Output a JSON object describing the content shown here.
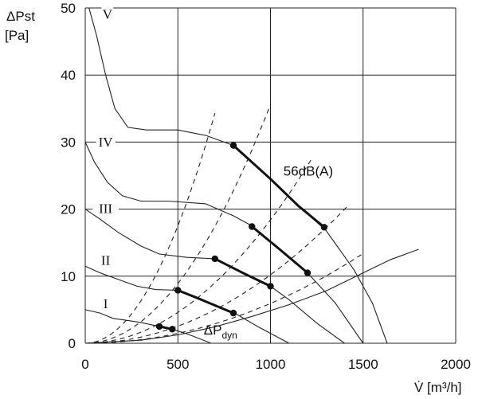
{
  "chart_data": {
    "type": "line",
    "title": "",
    "xlabel": "V̇ [m³/h]",
    "ylabel_line1": "ΔPst",
    "ylabel_line2": "[Pa]",
    "xlim": [
      0,
      2000
    ],
    "ylim": [
      0,
      50
    ],
    "x_ticks": [
      0,
      500,
      1000,
      1500,
      2000
    ],
    "y_ticks": [
      0,
      10,
      20,
      30,
      40,
      50
    ],
    "grid": true,
    "fan_curves": [
      {
        "name": "V",
        "points": [
          [
            20,
            50
          ],
          [
            60,
            46
          ],
          [
            110,
            40
          ],
          [
            160,
            35
          ],
          [
            230,
            32.2
          ],
          [
            330,
            31.8
          ],
          [
            500,
            31.8
          ],
          [
            650,
            31
          ],
          [
            800,
            29.5
          ],
          [
            1000,
            24.5
          ],
          [
            1150,
            20.5
          ],
          [
            1300,
            16.8
          ],
          [
            1450,
            11
          ],
          [
            1550,
            6
          ],
          [
            1630,
            0
          ]
        ]
      },
      {
        "name": "IV",
        "points": [
          [
            0,
            30
          ],
          [
            50,
            27
          ],
          [
            120,
            24
          ],
          [
            200,
            22
          ],
          [
            300,
            21.2
          ],
          [
            450,
            21.2
          ],
          [
            650,
            20.8
          ],
          [
            800,
            19
          ],
          [
            900,
            17.5
          ],
          [
            1050,
            14
          ],
          [
            1200,
            10.5
          ],
          [
            1350,
            6
          ],
          [
            1500,
            0
          ]
        ]
      },
      {
        "name": "III",
        "points": [
          [
            0,
            20
          ],
          [
            80,
            18.5
          ],
          [
            180,
            16.5
          ],
          [
            300,
            14.5
          ],
          [
            400,
            13.3
          ],
          [
            550,
            12.8
          ],
          [
            700,
            12.6
          ],
          [
            850,
            10.5
          ],
          [
            1000,
            8.5
          ],
          [
            1100,
            6.5
          ],
          [
            1250,
            3
          ],
          [
            1400,
            0
          ]
        ]
      },
      {
        "name": "II",
        "points": [
          [
            0,
            11.5
          ],
          [
            80,
            10.5
          ],
          [
            180,
            9.5
          ],
          [
            280,
            8.5
          ],
          [
            380,
            8
          ],
          [
            500,
            7.9
          ],
          [
            600,
            6.8
          ],
          [
            800,
            4.6
          ],
          [
            930,
            2.5
          ],
          [
            1100,
            0
          ]
        ]
      },
      {
        "name": "I",
        "points": [
          [
            0,
            5
          ],
          [
            80,
            4.5
          ],
          [
            150,
            3.7
          ],
          [
            230,
            3.4
          ],
          [
            300,
            3.1
          ],
          [
            400,
            2.5
          ],
          [
            470,
            2.1
          ],
          [
            560,
            1.3
          ],
          [
            680,
            0
          ]
        ]
      }
    ],
    "fan_labels": [
      {
        "text": "V",
        "x": 120,
        "y": 49
      },
      {
        "text": "IV",
        "x": 110,
        "y": 29.9
      },
      {
        "text": "III",
        "x": 110,
        "y": 20
      },
      {
        "text": "II",
        "x": 110,
        "y": 12.3
      },
      {
        "text": "I",
        "x": 110,
        "y": 5.8
      }
    ],
    "system_curves": [
      {
        "k": 7e-05,
        "xmax": 700
      },
      {
        "k": 3.56e-05,
        "xmax": 1000
      },
      {
        "k": 1.84e-05,
        "xmax": 1220
      },
      {
        "k": 1.02e-05,
        "xmax": 1430
      },
      {
        "k": 5.94e-06,
        "xmax": 1500
      }
    ],
    "dynamic_pressure_curve": {
      "name": "ΔPdyn",
      "points": [
        [
          0,
          0
        ],
        [
          300,
          0.45
        ],
        [
          500,
          1.25
        ],
        [
          700,
          2.45
        ],
        [
          900,
          4
        ],
        [
          1100,
          5.75
        ],
        [
          1300,
          7.8
        ],
        [
          1500,
          10.5
        ],
        [
          1650,
          12.5
        ],
        [
          1800,
          14
        ]
      ]
    },
    "operating_range_56dBA": {
      "label": "56dB(A)",
      "label_x": 1070,
      "label_y": 25,
      "segments": [
        [
          [
            800,
            29.5
          ],
          [
            1000,
            24.5
          ],
          [
            1150,
            20.5
          ],
          [
            1290,
            17.3
          ]
        ],
        [
          [
            900,
            17.4
          ],
          [
            1050,
            14
          ],
          [
            1200,
            10.5
          ]
        ],
        [
          [
            700,
            12.6
          ],
          [
            850,
            10.5
          ],
          [
            1000,
            8.5
          ]
        ],
        [
          [
            500,
            7.9
          ],
          [
            600,
            6.8
          ],
          [
            800,
            4.5
          ]
        ],
        [
          [
            400,
            2.5
          ],
          [
            470,
            2.1
          ]
        ]
      ],
      "points": [
        [
          800,
          29.5
        ],
        [
          1290,
          17.3
        ],
        [
          900,
          17.4
        ],
        [
          1200,
          10.5
        ],
        [
          700,
          12.6
        ],
        [
          1000,
          8.5
        ],
        [
          500,
          7.9
        ],
        [
          800,
          4.5
        ],
        [
          400,
          2.5
        ],
        [
          470,
          2.1
        ]
      ]
    },
    "dyn_label": {
      "main": "ΔP",
      "sub": "dyn",
      "x": 640,
      "y": 1.3
    }
  }
}
